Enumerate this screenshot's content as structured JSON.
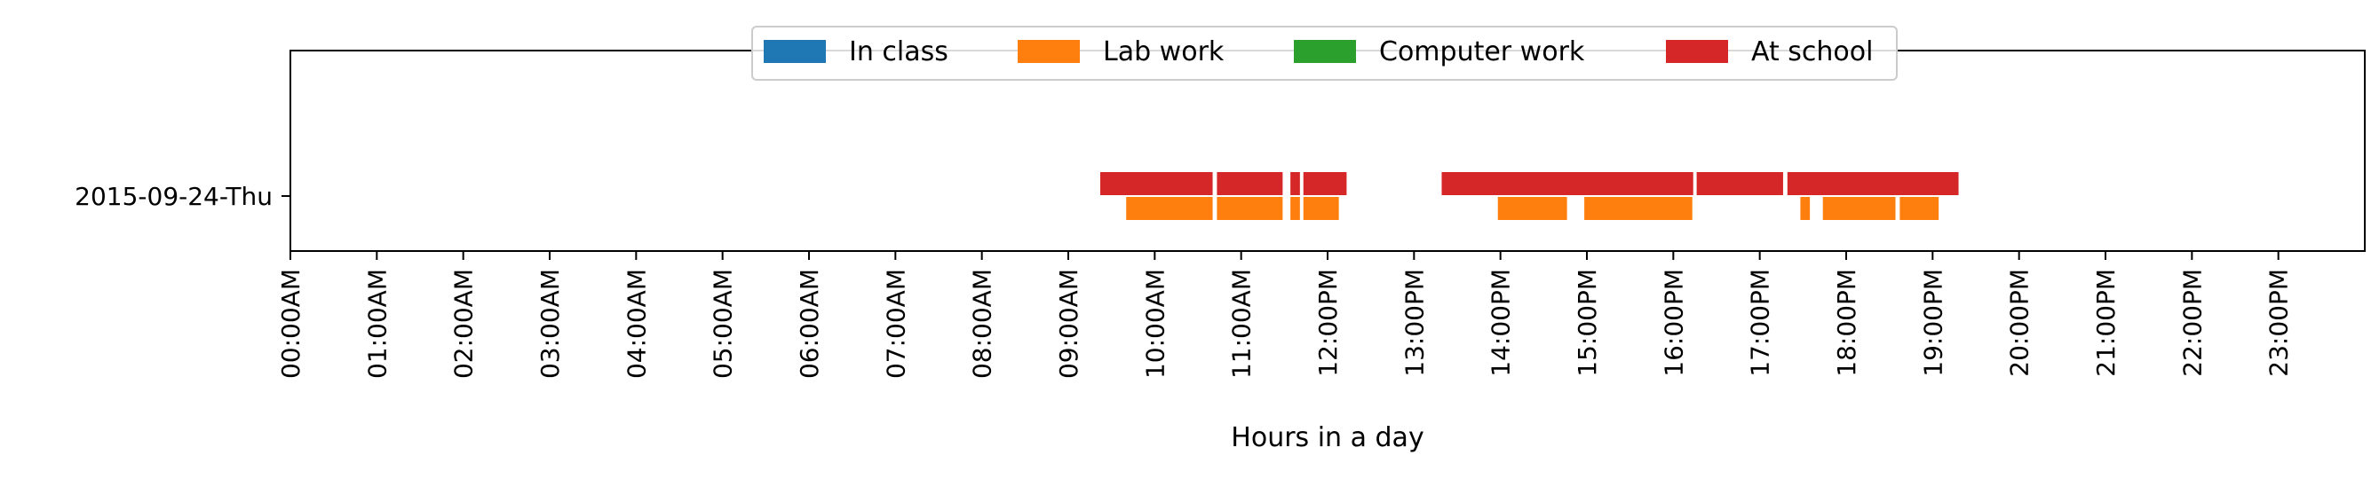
{
  "chart_data": {
    "type": "timeline",
    "title": "",
    "xlabel": "Hours in a day",
    "ylabel": "",
    "xlim": [
      0,
      24
    ],
    "x_ticks": [
      {
        "value": 0,
        "label": "00:00AM"
      },
      {
        "value": 1,
        "label": "01:00AM"
      },
      {
        "value": 2,
        "label": "02:00AM"
      },
      {
        "value": 3,
        "label": "03:00AM"
      },
      {
        "value": 4,
        "label": "04:00AM"
      },
      {
        "value": 5,
        "label": "05:00AM"
      },
      {
        "value": 6,
        "label": "06:00AM"
      },
      {
        "value": 7,
        "label": "07:00AM"
      },
      {
        "value": 8,
        "label": "08:00AM"
      },
      {
        "value": 9,
        "label": "09:00AM"
      },
      {
        "value": 10,
        "label": "10:00AM"
      },
      {
        "value": 11,
        "label": "11:00AM"
      },
      {
        "value": 12,
        "label": "12:00PM"
      },
      {
        "value": 13,
        "label": "13:00PM"
      },
      {
        "value": 14,
        "label": "14:00PM"
      },
      {
        "value": 15,
        "label": "15:00PM"
      },
      {
        "value": 16,
        "label": "16:00PM"
      },
      {
        "value": 17,
        "label": "17:00PM"
      },
      {
        "value": 18,
        "label": "18:00PM"
      },
      {
        "value": 19,
        "label": "19:00PM"
      },
      {
        "value": 20,
        "label": "20:00PM"
      },
      {
        "value": 21,
        "label": "21:00PM"
      },
      {
        "value": 22,
        "label": "22:00PM"
      },
      {
        "value": 23,
        "label": "23:00PM"
      }
    ],
    "y_labels": [
      "2015-09-24-Thu"
    ],
    "legend_position": "top-center",
    "grid": false,
    "legend": [
      {
        "label": "In class",
        "color": "#1f77b4"
      },
      {
        "label": "Lab work",
        "color": "#ff7f0e"
      },
      {
        "label": "Computer work",
        "color": "#2ca02c"
      },
      {
        "label": "At school",
        "color": "#d62728"
      }
    ],
    "series": [
      {
        "name": "At school",
        "color": "#d62728",
        "row": "2015-09-24-Thu",
        "intervals": [
          [
            9.37,
            10.67
          ],
          [
            10.72,
            11.48
          ],
          [
            11.57,
            11.68
          ],
          [
            11.72,
            12.22
          ],
          [
            13.32,
            16.23
          ],
          [
            16.27,
            17.27
          ],
          [
            17.32,
            19.3
          ]
        ]
      },
      {
        "name": "Lab work",
        "color": "#ff7f0e",
        "row": "2015-09-24-Thu",
        "intervals": [
          [
            9.67,
            10.67
          ],
          [
            10.72,
            11.48
          ],
          [
            11.57,
            11.68
          ],
          [
            11.72,
            12.13
          ],
          [
            13.97,
            14.77
          ],
          [
            14.97,
            16.22
          ],
          [
            17.47,
            17.58
          ],
          [
            17.73,
            18.57
          ],
          [
            18.62,
            19.07
          ]
        ]
      }
    ]
  }
}
